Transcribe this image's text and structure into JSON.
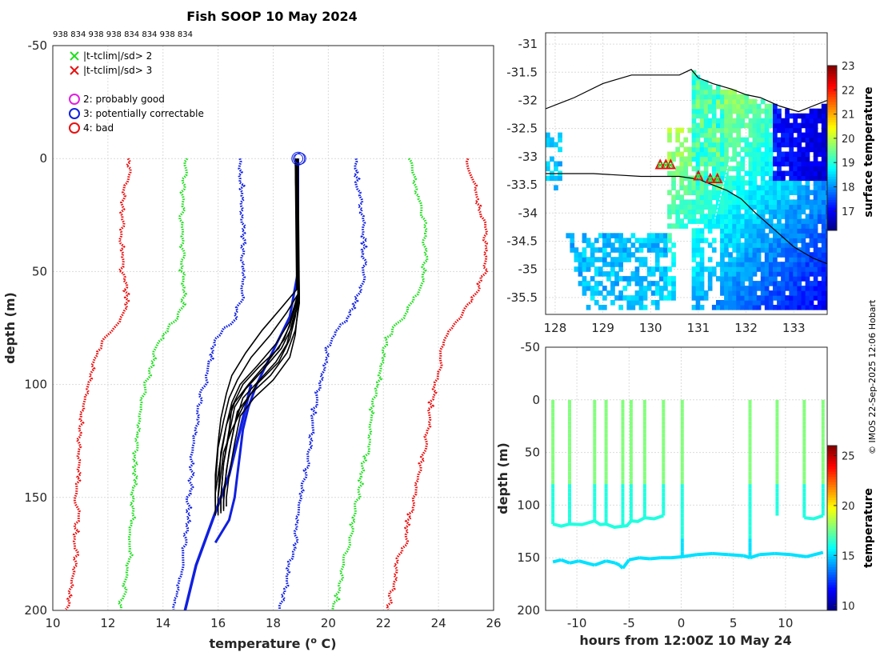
{
  "title": "Fish SOOP 10 May 2024",
  "subtitle_ids": "938 834 938 938 834 834 938 834",
  "credit": "© IMOS 22-Sep-2025 12:06 Hobart",
  "colors": {
    "red": "#e81010",
    "green": "#22dd22",
    "blue": "#1020e0",
    "magenta": "#e020e0",
    "black": "#000000",
    "grid": "#dcdcdc"
  },
  "legend": {
    "crosses": [
      {
        "label": "|t-tclim|/sd> 2",
        "color": "#22dd22"
      },
      {
        "label": "|t-tclim|/sd> 3",
        "color": "#e81010"
      }
    ],
    "circles": [
      {
        "label": "2: probably good",
        "color": "#e020e0"
      },
      {
        "label": "3: potentially correctable",
        "color": "#1020e0"
      },
      {
        "label": "4: bad",
        "color": "#e81010"
      }
    ]
  },
  "chart_data": [
    {
      "type": "line",
      "id": "profile",
      "xlabel": "temperature (",
      "xlabel_sup": "o",
      "xlabel_end": " C)",
      "ylabel": "depth (m)",
      "xlim": [
        10,
        26
      ],
      "ylim": [
        -50,
        200
      ],
      "xticks": [
        "10",
        "12",
        "14",
        "16",
        "18",
        "20",
        "22",
        "24",
        "26"
      ],
      "yticks": [
        "-50",
        "0",
        "50",
        "100",
        "150",
        "200"
      ],
      "clim_depth": [
        0,
        5,
        10,
        20,
        30,
        40,
        50,
        60,
        70,
        75,
        80,
        90,
        100,
        110,
        120,
        130,
        140,
        150,
        160,
        170,
        175,
        190,
        200
      ],
      "clim_mean": [
        18.9,
        18.9,
        18.95,
        19.0,
        19.1,
        19.1,
        19.1,
        19.0,
        18.7,
        18.3,
        18.0,
        17.8,
        17.6,
        17.4,
        17.3,
        17.2,
        17.1,
        17.0,
        16.9,
        16.8,
        16.7,
        16.5,
        16.3
      ],
      "clim_sd": [
        2.05,
        2.05,
        2.1,
        2.15,
        2.2,
        2.2,
        2.2,
        2.1,
        2.05,
        2.05,
        2.05,
        2.1,
        2.1,
        2.1,
        2.1,
        2.1,
        2.05,
        2.05,
        2.0,
        2.0,
        1.95,
        1.95,
        1.95
      ],
      "clim_sd_offsets": [
        -3,
        -2,
        -1,
        1,
        2,
        3
      ],
      "profiles": [
        {
          "depth": [
            0,
            60,
            70,
            80,
            90,
            100,
            110,
            120,
            130,
            150,
            158
          ],
          "temp": [
            18.8,
            18.9,
            18.8,
            18.6,
            18.2,
            17.4,
            16.9,
            16.5,
            16.2,
            16.0,
            16.0
          ]
        },
        {
          "depth": [
            0,
            60,
            72,
            82,
            92,
            100,
            108,
            118,
            130,
            150,
            157
          ],
          "temp": [
            18.8,
            18.9,
            18.6,
            18.1,
            17.4,
            16.8,
            16.5,
            16.3,
            16.1,
            16.0,
            16.0
          ]
        },
        {
          "depth": [
            0,
            62,
            74,
            84,
            94,
            102,
            110,
            122,
            135,
            150,
            156
          ],
          "temp": [
            18.85,
            18.95,
            18.7,
            18.3,
            17.6,
            17.0,
            16.6,
            16.4,
            16.2,
            16.1,
            16.1
          ]
        },
        {
          "depth": [
            0,
            64,
            76,
            86,
            96,
            104,
            112,
            124,
            138,
            152,
            155
          ],
          "temp": [
            18.9,
            18.95,
            18.8,
            18.5,
            17.9,
            17.2,
            16.7,
            16.5,
            16.3,
            16.2,
            16.2
          ]
        },
        {
          "depth": [
            0,
            60,
            68,
            78,
            88,
            98,
            106,
            116,
            128,
            145,
            154
          ],
          "temp": [
            18.8,
            18.9,
            18.5,
            17.9,
            17.2,
            16.7,
            16.4,
            16.2,
            16.0,
            15.9,
            15.9
          ]
        },
        {
          "depth": [
            0,
            58,
            66,
            76,
            86,
            96,
            104,
            115,
            126,
            140,
            152
          ],
          "temp": [
            18.8,
            18.85,
            18.3,
            17.6,
            17.0,
            16.5,
            16.3,
            16.1,
            16.0,
            15.9,
            15.9
          ]
        },
        {
          "depth": [
            0,
            66,
            78,
            88,
            98,
            106,
            114,
            126,
            140,
            150,
            154
          ],
          "temp": [
            18.9,
            18.9,
            18.8,
            18.6,
            18.0,
            17.3,
            16.8,
            16.6,
            16.4,
            16.3,
            16.3
          ]
        },
        {
          "depth": [
            0,
            62,
            70,
            80,
            90,
            100,
            108,
            118,
            132,
            148,
            158
          ],
          "temp": [
            18.85,
            18.9,
            18.7,
            18.4,
            17.8,
            17.1,
            16.6,
            16.3,
            16.1,
            15.9,
            15.9
          ]
        },
        {
          "depth": [
            0,
            60,
            74,
            84,
            92,
            100,
            110,
            120,
            135,
            150,
            157
          ],
          "temp": [
            18.8,
            18.9,
            18.6,
            18.2,
            17.5,
            16.9,
            16.5,
            16.4,
            16.2,
            16.1,
            16.1
          ]
        },
        {
          "depth": [
            0,
            64,
            72,
            82,
            90,
            98,
            106,
            118,
            130,
            148,
            156
          ],
          "temp": [
            18.9,
            18.9,
            18.7,
            18.5,
            18.1,
            17.5,
            16.9,
            16.6,
            16.4,
            16.2,
            16.2
          ]
        }
      ],
      "blue_profile": {
        "depth": [
          0,
          50,
          70,
          80,
          90,
          100,
          110,
          120,
          130,
          140,
          150,
          160,
          170
        ],
        "temp": [
          18.9,
          18.9,
          18.6,
          18.2,
          17.8,
          17.4,
          17.1,
          16.9,
          16.8,
          16.7,
          16.6,
          16.4,
          15.9
        ]
      },
      "blue_profile2": {
        "depth": [
          100,
          120,
          140,
          160,
          180,
          200
        ],
        "temp": [
          17.2,
          16.8,
          16.4,
          15.8,
          15.2,
          14.8
        ]
      },
      "flag_circles": [
        {
          "depth": 0,
          "temp": 18.9
        },
        {
          "depth": 0,
          "temp": 18.95
        },
        {
          "depth": 0,
          "temp": 18.85
        }
      ]
    },
    {
      "type": "heatmap",
      "id": "sst_map",
      "colorbar_label": "surface temperature",
      "clim": [
        16.2,
        23.0
      ],
      "cbticks": [
        "17",
        "18",
        "19",
        "20",
        "21",
        "22",
        "23"
      ],
      "xlim": [
        127.8,
        133.7
      ],
      "ylim": [
        -35.8,
        -30.8
      ],
      "xticks": [
        "128",
        "129",
        "130",
        "131",
        "132",
        "133"
      ],
      "yticks": [
        "-31",
        "-31.5",
        "-32",
        "-32.5",
        "-33",
        "-33.5",
        "-34",
        "-34.5",
        "-35",
        "-35.5"
      ],
      "coast": [
        [
          127.8,
          -32.15
        ],
        [
          128.4,
          -31.95
        ],
        [
          129.0,
          -31.7
        ],
        [
          129.6,
          -31.55
        ],
        [
          130.2,
          -31.55
        ],
        [
          130.6,
          -31.55
        ],
        [
          130.85,
          -31.45
        ],
        [
          131.0,
          -31.6
        ],
        [
          131.3,
          -31.7
        ],
        [
          131.7,
          -31.8
        ],
        [
          132.0,
          -31.9
        ],
        [
          132.3,
          -31.95
        ],
        [
          132.7,
          -32.1
        ],
        [
          133.1,
          -32.2
        ],
        [
          133.4,
          -32.1
        ],
        [
          133.7,
          -32.0
        ]
      ],
      "track": [
        [
          127.8,
          -33.3
        ],
        [
          128.8,
          -33.3
        ],
        [
          129.8,
          -33.35
        ],
        [
          130.6,
          -33.35
        ],
        [
          131.0,
          -33.4
        ],
        [
          131.3,
          -33.5
        ],
        [
          131.6,
          -33.6
        ],
        [
          131.9,
          -33.75
        ],
        [
          132.2,
          -34.0
        ],
        [
          132.6,
          -34.3
        ],
        [
          133.0,
          -34.6
        ],
        [
          133.4,
          -34.8
        ],
        [
          133.7,
          -34.9
        ]
      ],
      "markers": [
        {
          "lon": 130.2,
          "lat": -33.15
        },
        {
          "lon": 130.32,
          "lat": -33.15
        },
        {
          "lon": 130.42,
          "lat": -33.15
        },
        {
          "lon": 131.0,
          "lat": -33.35
        },
        {
          "lon": 131.25,
          "lat": -33.4
        },
        {
          "lon": 131.4,
          "lat": -33.4
        }
      ]
    },
    {
      "type": "scatter",
      "id": "depth_time",
      "xlabel": "hours from 12:00Z 10 May 24",
      "ylabel": "depth (m)",
      "colorbar_label": "temperature",
      "clim": [
        9.5,
        26.0
      ],
      "cbticks": [
        "10",
        "15",
        "20",
        "25"
      ],
      "xlim": [
        -13,
        14
      ],
      "ylim": [
        -50,
        200
      ],
      "xticks": [
        "-10",
        "-5",
        "0",
        "5",
        "10"
      ],
      "yticks": [
        "-50",
        "0",
        "50",
        "100",
        "150",
        "200"
      ],
      "dives": [
        {
          "x": -12.3,
          "bottom": 118
        },
        {
          "x": -10.7,
          "bottom": 118
        },
        {
          "x": -8.3,
          "bottom": 115
        },
        {
          "x": -7.2,
          "bottom": 118
        },
        {
          "x": -5.6,
          "bottom": 120
        },
        {
          "x": -4.8,
          "bottom": 115
        },
        {
          "x": -3.5,
          "bottom": 112
        },
        {
          "x": -1.7,
          "bottom": 110
        },
        {
          "x": 0.1,
          "bottom": 150
        },
        {
          "x": 6.6,
          "bottom": 150
        },
        {
          "x": 9.2,
          "bottom": 110
        },
        {
          "x": 11.8,
          "bottom": 112
        },
        {
          "x": 13.6,
          "bottom": 110
        }
      ],
      "bottom_trace": [
        [
          -12.3,
          154
        ],
        [
          -11.5,
          152
        ],
        [
          -10.7,
          155
        ],
        [
          -9.8,
          153
        ],
        [
          -8.3,
          157
        ],
        [
          -7.2,
          153
        ],
        [
          -6.3,
          155
        ],
        [
          -5.9,
          157
        ],
        [
          -5.6,
          160
        ],
        [
          -5.0,
          152
        ],
        [
          -4.0,
          150
        ],
        [
          -3.0,
          151
        ],
        [
          -2.0,
          150
        ],
        [
          -1.0,
          150
        ],
        [
          0.1,
          149
        ],
        [
          1.5,
          147
        ],
        [
          3.0,
          146
        ],
        [
          4.5,
          147
        ],
        [
          6.0,
          148
        ],
        [
          6.6,
          150
        ],
        [
          7.5,
          147
        ],
        [
          9.0,
          146
        ],
        [
          10.5,
          147
        ],
        [
          12.0,
          149
        ],
        [
          13.6,
          145
        ]
      ]
    }
  ]
}
